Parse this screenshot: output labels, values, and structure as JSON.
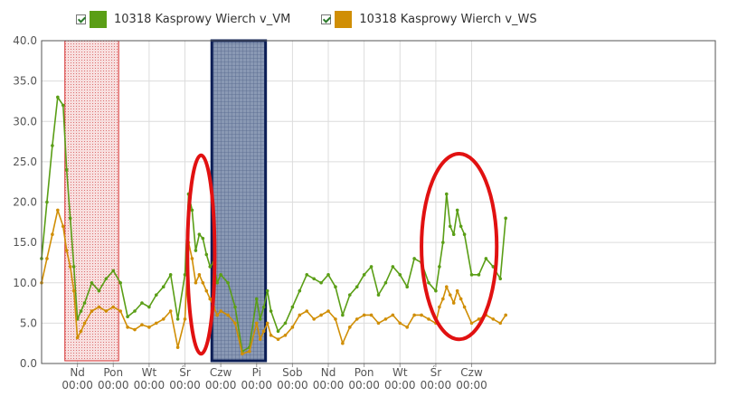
{
  "legend": {
    "items": [
      {
        "label": "10318 Kasprowy Wierch v_VM",
        "color": "#5a9e16",
        "checked": true
      },
      {
        "label": "10318 Kasprowy Wierch v_WS",
        "color": "#d08e05",
        "checked": true
      }
    ]
  },
  "chart_data": {
    "type": "line",
    "title": "",
    "xlabel": "",
    "ylabel": "",
    "ylim": [
      0,
      40
    ],
    "yticks": [
      "0.0",
      "5.0",
      "10.0",
      "15.0",
      "20.0",
      "25.0",
      "30.0",
      "35.0",
      "40.0"
    ],
    "x_range_days": [
      0,
      18.8
    ],
    "grid": true,
    "legend_position": "top",
    "xticks": [
      {
        "day": 1,
        "day_label": "Nd",
        "time_label": "00:00"
      },
      {
        "day": 2,
        "day_label": "Pon",
        "time_label": "00:00"
      },
      {
        "day": 3,
        "day_label": "Wt",
        "time_label": "00:00"
      },
      {
        "day": 4,
        "day_label": "Śr",
        "time_label": "00:00"
      },
      {
        "day": 5,
        "day_label": "Czw",
        "time_label": "00:00"
      },
      {
        "day": 6,
        "day_label": "Pi",
        "time_label": "00:00"
      },
      {
        "day": 7,
        "day_label": "Sob",
        "time_label": "00:00"
      },
      {
        "day": 8,
        "day_label": "Nd",
        "time_label": "00:00"
      },
      {
        "day": 9,
        "day_label": "Pon",
        "time_label": "00:00"
      },
      {
        "day": 10,
        "day_label": "Wt",
        "time_label": "00:00"
      },
      {
        "day": 11,
        "day_label": "Śr",
        "time_label": "00:00"
      },
      {
        "day": 12,
        "day_label": "Czw",
        "time_label": "00:00"
      }
    ],
    "series": [
      {
        "name": "10318 Kasprowy Wierch v_VM",
        "color": "#5a9e16",
        "x": [
          0,
          0.15,
          0.3,
          0.45,
          0.6,
          0.7,
          0.8,
          0.9,
          1.0,
          1.1,
          1.2,
          1.4,
          1.6,
          1.8,
          2.0,
          2.2,
          2.4,
          2.6,
          2.8,
          3.0,
          3.2,
          3.4,
          3.6,
          3.8,
          4.0,
          4.1,
          4.2,
          4.3,
          4.4,
          4.5,
          4.6,
          4.7,
          4.8,
          4.9,
          5.0,
          5.2,
          5.4,
          5.6,
          5.8,
          6.0,
          6.1,
          6.2,
          6.3,
          6.4,
          6.6,
          6.8,
          7.0,
          7.2,
          7.4,
          7.6,
          7.8,
          8.0,
          8.2,
          8.4,
          8.6,
          8.8,
          9.0,
          9.2,
          9.4,
          9.6,
          9.8,
          10.0,
          10.2,
          10.4,
          10.6,
          10.8,
          11.0,
          11.1,
          11.2,
          11.3,
          11.4,
          11.5,
          11.6,
          11.7,
          11.8,
          12.0,
          12.2,
          12.4,
          12.6,
          12.8,
          12.95
        ],
        "values": [
          13,
          20,
          27,
          33,
          32,
          24,
          18,
          12,
          5.5,
          6.5,
          7.5,
          10,
          9,
          10.5,
          11.5,
          10,
          5.8,
          6.5,
          7.5,
          7,
          8.5,
          9.5,
          11,
          5.5,
          11,
          21,
          19,
          14,
          16,
          15.5,
          13.5,
          12,
          12.5,
          10,
          11,
          10,
          7,
          1.5,
          2,
          8,
          5.5,
          7,
          9,
          6.5,
          4,
          5,
          7,
          9,
          11,
          10.5,
          10,
          11,
          9.5,
          6,
          8.5,
          9.5,
          11,
          12,
          8.5,
          10,
          12,
          11,
          9.5,
          13,
          12.5,
          10,
          9,
          12,
          15,
          21,
          17,
          16,
          19,
          17,
          16,
          11,
          11,
          13,
          12,
          10.5,
          18
        ]
      },
      {
        "name": "10318 Kasprowy Wierch v_WS",
        "color": "#d08e05",
        "x": [
          0,
          0.15,
          0.3,
          0.45,
          0.6,
          0.7,
          0.8,
          0.9,
          1.0,
          1.1,
          1.2,
          1.4,
          1.6,
          1.8,
          2.0,
          2.2,
          2.4,
          2.6,
          2.8,
          3.0,
          3.2,
          3.4,
          3.6,
          3.8,
          4.0,
          4.1,
          4.2,
          4.3,
          4.4,
          4.5,
          4.6,
          4.7,
          4.8,
          4.9,
          5.0,
          5.2,
          5.4,
          5.6,
          5.8,
          6.0,
          6.1,
          6.2,
          6.3,
          6.4,
          6.6,
          6.8,
          7.0,
          7.2,
          7.4,
          7.6,
          7.8,
          8.0,
          8.2,
          8.4,
          8.6,
          8.8,
          9.0,
          9.2,
          9.4,
          9.6,
          9.8,
          10.0,
          10.2,
          10.4,
          10.6,
          10.8,
          11.0,
          11.1,
          11.2,
          11.3,
          11.4,
          11.5,
          11.6,
          11.7,
          11.8,
          12.0,
          12.2,
          12.4,
          12.6,
          12.8,
          12.95
        ],
        "values": [
          10,
          13,
          16,
          19,
          17,
          14,
          12,
          9,
          3.2,
          4,
          5,
          6.5,
          7,
          6.5,
          7,
          6.5,
          4.5,
          4.2,
          4.8,
          4.5,
          5,
          5.5,
          6.5,
          2,
          5.5,
          15,
          13,
          10,
          11,
          10,
          9,
          8,
          7,
          6,
          6.5,
          6,
          5,
          1.2,
          1.5,
          5,
          3,
          4,
          5,
          3.5,
          3,
          3.5,
          4.5,
          6,
          6.5,
          5.5,
          6,
          6.5,
          5.5,
          2.5,
          4.5,
          5.5,
          6,
          6,
          5,
          5.5,
          6,
          5,
          4.5,
          6,
          6,
          5.5,
          5,
          7,
          8,
          9.5,
          8.5,
          7.5,
          9,
          8,
          7,
          5,
          5.5,
          6,
          5.5,
          5,
          6
        ]
      }
    ],
    "shaded_regions": [
      {
        "x_from": 0.65,
        "x_to": 2.15,
        "style": "red-hatched",
        "fill": "#f2c4c4",
        "stroke": "#d53030"
      },
      {
        "x_from": 4.75,
        "x_to": 6.25,
        "style": "navy-grid",
        "fill": "#7a8aa6",
        "stroke": "#0b1e56"
      }
    ],
    "annotations": [
      {
        "shape": "ellipse",
        "cx": 4.45,
        "cy": 13.5,
        "rx": 0.38,
        "ry": 12.3,
        "color": "#e11111"
      },
      {
        "shape": "ellipse",
        "cx": 11.65,
        "cy": 14.5,
        "rx": 1.05,
        "ry": 11.5,
        "color": "#e11111"
      }
    ]
  }
}
